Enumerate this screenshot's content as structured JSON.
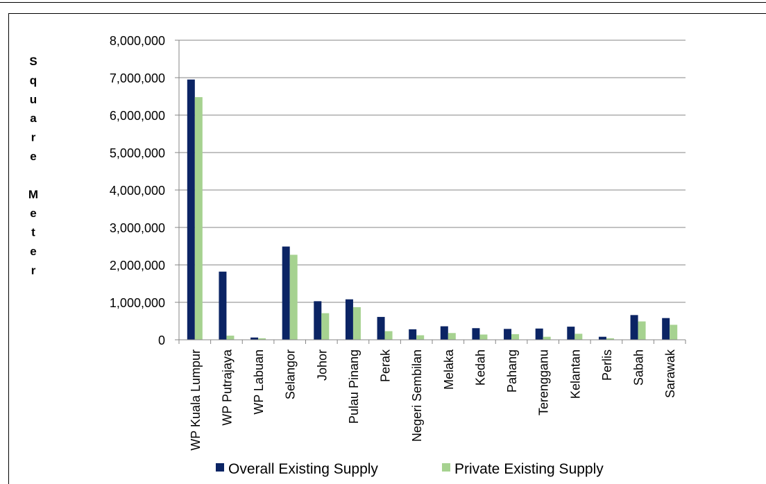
{
  "chart_data": {
    "type": "bar",
    "ylabel": "Square Meter",
    "ylabel_letters": [
      "S",
      "q",
      "u",
      "a",
      "r",
      "e",
      "",
      "M",
      "e",
      "t",
      "e",
      "r"
    ],
    "ylim": [
      0,
      8000000
    ],
    "yticks": [
      "0",
      "1,000,000",
      "2,000,000",
      "3,000,000",
      "4,000,000",
      "5,000,000",
      "6,000,000",
      "7,000,000",
      "8,000,000"
    ],
    "grid": true,
    "legend_position": "bottom",
    "categories": [
      "WP Kuala Lumpur",
      "WP Putrajaya",
      "WP Labuan",
      "Selangor",
      "Johor",
      "Pulau Pinang",
      "Perak",
      "Negeri Sembilan",
      "Melaka",
      "Kedah",
      "Pahang",
      "Terengganu",
      "Kelantan",
      "Perlis",
      "Sabah",
      "Sarawak"
    ],
    "series": [
      {
        "name": "Overall Existing Supply",
        "color": "#0b2464",
        "values": [
          6950000,
          1820000,
          60000,
          2490000,
          1030000,
          1080000,
          610000,
          280000,
          360000,
          310000,
          290000,
          300000,
          350000,
          80000,
          660000,
          580000
        ]
      },
      {
        "name": "Private Existing Supply",
        "color": "#a6d290",
        "values": [
          6480000,
          110000,
          40000,
          2270000,
          710000,
          870000,
          230000,
          120000,
          180000,
          140000,
          150000,
          80000,
          160000,
          40000,
          490000,
          400000
        ]
      }
    ]
  }
}
